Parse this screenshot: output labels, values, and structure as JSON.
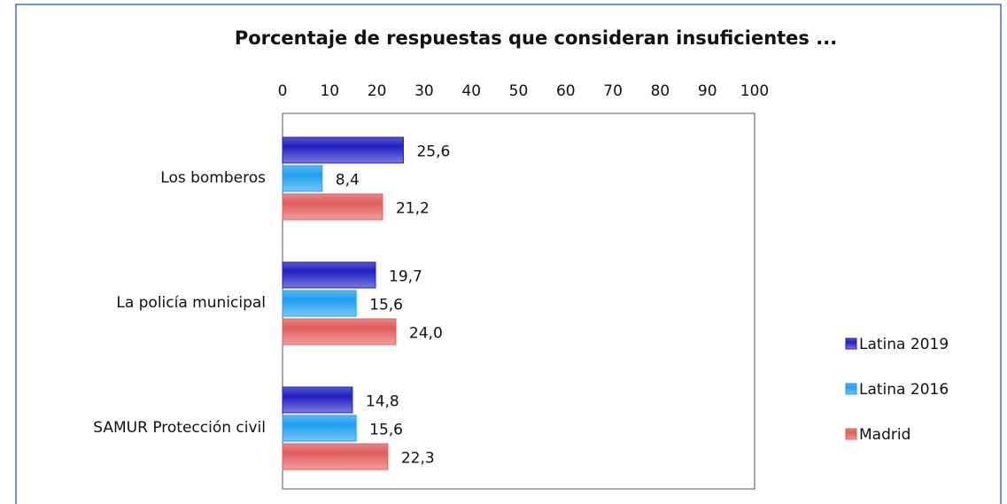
{
  "chart_data": {
    "type": "bar",
    "orientation": "horizontal",
    "title": "Porcentaje de respuestas que consideran insuficientes ...",
    "categories": [
      "Los bomberos",
      "La policía municipal",
      "SAMUR Protección civil"
    ],
    "series": [
      {
        "name": "Latina 2019",
        "color": "#1f1fc4",
        "values": [
          25.6,
          19.7,
          14.8
        ],
        "value_labels": [
          "25,6",
          "19,7",
          "14,8"
        ]
      },
      {
        "name": "Latina 2016",
        "color": "#1e9fef",
        "values": [
          8.4,
          15.6,
          15.6
        ],
        "value_labels": [
          "8,4",
          "15,6",
          "15,6"
        ]
      },
      {
        "name": "Madrid",
        "color": "#e25c5c",
        "values": [
          21.2,
          24.0,
          22.3
        ],
        "value_labels": [
          "21,2",
          "24,0",
          "22,3"
        ]
      }
    ],
    "xlim": [
      0,
      100
    ],
    "xticks": [
      0,
      10,
      20,
      30,
      40,
      50,
      60,
      70,
      80,
      90,
      100
    ],
    "grid": false,
    "legend": "right"
  }
}
